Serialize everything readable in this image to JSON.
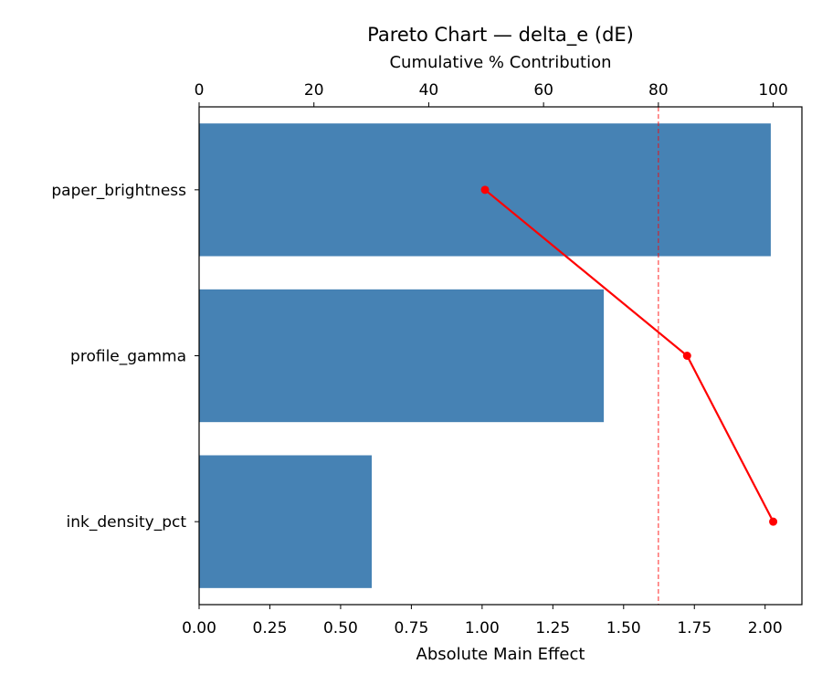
{
  "chart_data": {
    "type": "bar",
    "orientation": "horizontal",
    "title": "Pareto Chart — delta_e (dE)",
    "xlabel": "Absolute Main Effect",
    "top_xlabel": "Cumulative % Contribution",
    "categories": [
      "paper_brightness",
      "profile_gamma",
      "ink_density_pct"
    ],
    "values": [
      2.02,
      1.43,
      0.61
    ],
    "xlim": [
      0,
      2.13
    ],
    "xticks": [
      "0.00",
      "0.25",
      "0.50",
      "0.75",
      "1.00",
      "1.25",
      "1.50",
      "1.75",
      "2.00"
    ],
    "cumulative_percent": [
      49.8,
      85.0,
      100.0
    ],
    "top_xlim": [
      0,
      105
    ],
    "top_xticks": [
      "0",
      "20",
      "40",
      "60",
      "80",
      "100"
    ],
    "threshold_percent": 80,
    "grid": false,
    "colors": {
      "bar": "#4682b4",
      "cumulative_line": "#ff0000",
      "threshold_line": "#ff0000"
    }
  }
}
